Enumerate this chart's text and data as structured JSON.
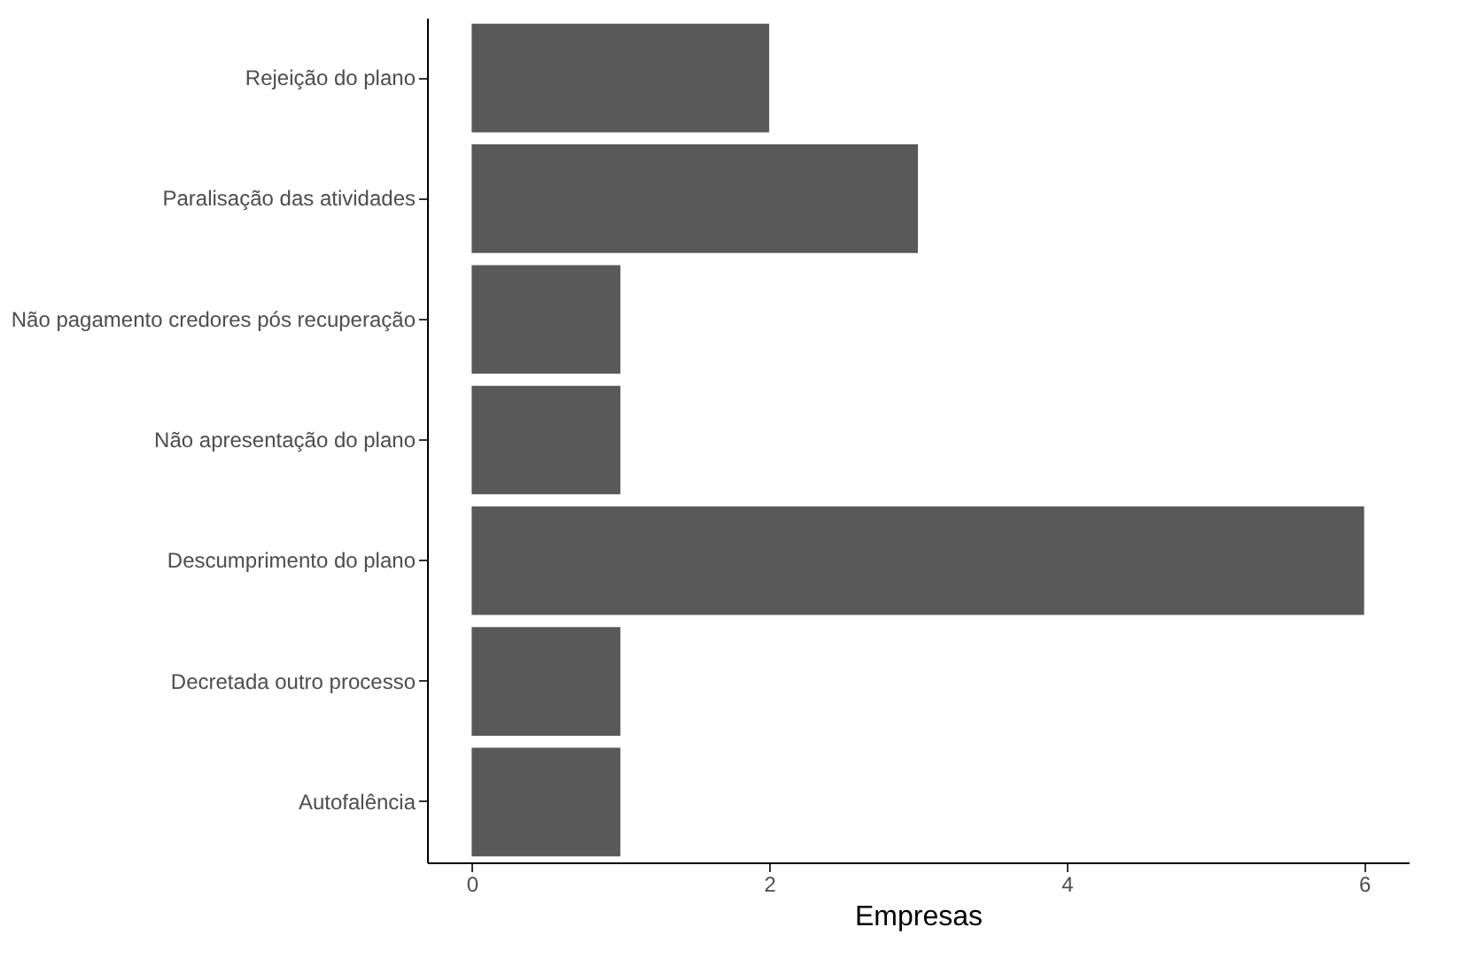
{
  "chart_data": {
    "type": "bar",
    "orientation": "horizontal",
    "categories": [
      "Rejeição do plano",
      "Paralisação das atividades",
      "Não pagamento credores pós recuperação",
      "Não apresentação do plano",
      "Descumprimento do plano",
      "Decretada outro processo",
      "Autofalência"
    ],
    "values": [
      2,
      3,
      1,
      1,
      6,
      1,
      1
    ],
    "color": "#595959",
    "xlabel": "Empresas",
    "xlim": [
      -0.3,
      6.3
    ],
    "xticks": [
      0,
      2,
      4,
      6
    ],
    "grid": false
  }
}
